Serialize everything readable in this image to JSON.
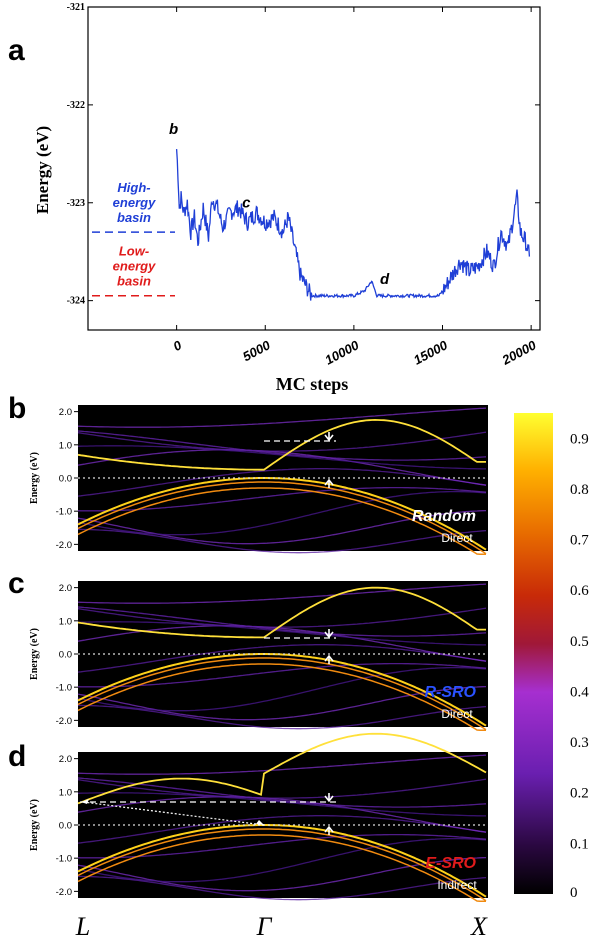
{
  "chart_data": [
    {
      "panel": "a",
      "type": "line",
      "xlabel": "MC steps",
      "ylabel": "Energy (eV)",
      "xlim": [
        -5000,
        20500
      ],
      "ylim": [
        -324.3,
        -321
      ],
      "x_ticks": [
        "0",
        "5000",
        "10000",
        "15000",
        "20000"
      ],
      "y_ticks": [
        "-321",
        "-322",
        "-323",
        "-324"
      ],
      "x_tick_values": [
        0,
        5000,
        10000,
        15000,
        20000
      ],
      "y_tick_values": [
        -321,
        -322,
        -323,
        -324
      ],
      "series": [
        {
          "color": "#1f3fd6",
          "points": [
            [
              0,
              -322.45
            ],
            [
              80,
              -322.7
            ],
            [
              150,
              -323.05
            ],
            [
              250,
              -322.95
            ],
            [
              400,
              -323.1
            ],
            [
              600,
              -323.0
            ],
            [
              800,
              -323.3
            ],
            [
              1000,
              -323.15
            ],
            [
              1200,
              -323.4
            ],
            [
              1500,
              -323.05
            ],
            [
              1800,
              -323.35
            ],
            [
              2000,
              -322.95
            ],
            [
              2300,
              -323.05
            ],
            [
              2600,
              -323.25
            ],
            [
              3000,
              -323.1
            ],
            [
              3500,
              -323.05
            ],
            [
              4000,
              -323.2
            ],
            [
              4500,
              -323.1
            ],
            [
              5000,
              -323.2
            ],
            [
              5500,
              -323.15
            ],
            [
              6000,
              -323.3
            ],
            [
              6300,
              -323.15
            ],
            [
              6700,
              -323.5
            ],
            [
              7000,
              -323.75
            ],
            [
              7300,
              -323.85
            ],
            [
              7600,
              -323.95
            ],
            [
              8000,
              -323.95
            ],
            [
              9000,
              -323.95
            ],
            [
              10000,
              -323.95
            ],
            [
              10600,
              -323.9
            ],
            [
              11000,
              -323.8
            ],
            [
              11300,
              -323.95
            ],
            [
              12000,
              -323.95
            ],
            [
              13000,
              -323.95
            ],
            [
              14000,
              -323.95
            ],
            [
              14800,
              -323.95
            ],
            [
              15200,
              -323.85
            ],
            [
              15500,
              -323.75
            ],
            [
              16000,
              -323.6
            ],
            [
              16500,
              -323.7
            ],
            [
              17000,
              -323.65
            ],
            [
              17500,
              -323.5
            ],
            [
              17900,
              -323.65
            ],
            [
              18300,
              -323.3
            ],
            [
              18700,
              -323.45
            ],
            [
              19000,
              -323.15
            ],
            [
              19200,
              -322.95
            ],
            [
              19400,
              -323.3
            ],
            [
              19700,
              -323.4
            ],
            [
              19900,
              -323.55
            ]
          ]
        }
      ],
      "annotations": [
        {
          "text": "b",
          "x": 0,
          "y": -322.3
        },
        {
          "text": "c",
          "x": 4100,
          "y": -323.05
        },
        {
          "text": "d",
          "x": 11900,
          "y": -323.83
        }
      ],
      "basins": [
        {
          "label_lines": [
            "High-",
            "energy",
            "basin"
          ],
          "energy": -323.3,
          "color": "#1f3fd6"
        },
        {
          "label_lines": [
            "Low-",
            "energy",
            "basin"
          ],
          "energy": -323.95,
          "color": "#e01b1b"
        }
      ]
    },
    {
      "panel": "b",
      "type": "heatmap",
      "ylabel": "Energy (eV)",
      "y_ticks": [
        "2.0",
        "1.0",
        "0.0",
        "-1.0",
        "-2.0"
      ],
      "ylim": [
        -2.2,
        2.2
      ],
      "label": "Random",
      "label_color": "#ffffff",
      "gap_type": "Direct"
    },
    {
      "panel": "c",
      "type": "heatmap",
      "ylabel": "Energy (eV)",
      "y_ticks": [
        "2.0",
        "1.0",
        "0.0",
        "-1.0",
        "-2.0"
      ],
      "ylim": [
        -2.2,
        2.2
      ],
      "label": "R-SRO",
      "label_color": "#2a52ff",
      "gap_type": "Direct"
    },
    {
      "panel": "d",
      "type": "heatmap",
      "ylabel": "Energy (eV)",
      "y_ticks": [
        "2.0",
        "1.0",
        "0.0",
        "-1.0",
        "-2.0"
      ],
      "ylim": [
        -2.2,
        2.2
      ],
      "label": "E-SRO",
      "label_color": "#e01b1b",
      "gap_type": "Indirect",
      "k_labels": [
        "L",
        "Γ",
        "X"
      ]
    }
  ],
  "colorbar": {
    "ticks": [
      "0.9",
      "0.8",
      "0.7",
      "0.6",
      "0.5",
      "0.4",
      "0.3",
      "0.2",
      "0.1",
      "0"
    ],
    "tick_values": [
      0.9,
      0.8,
      0.7,
      0.6,
      0.5,
      0.4,
      0.3,
      0.2,
      0.1,
      0.0
    ],
    "range": [
      0,
      0.95
    ]
  },
  "labels": {
    "panel_a": "a",
    "panel_b": "b",
    "panel_c": "c",
    "panel_d": "d"
  }
}
